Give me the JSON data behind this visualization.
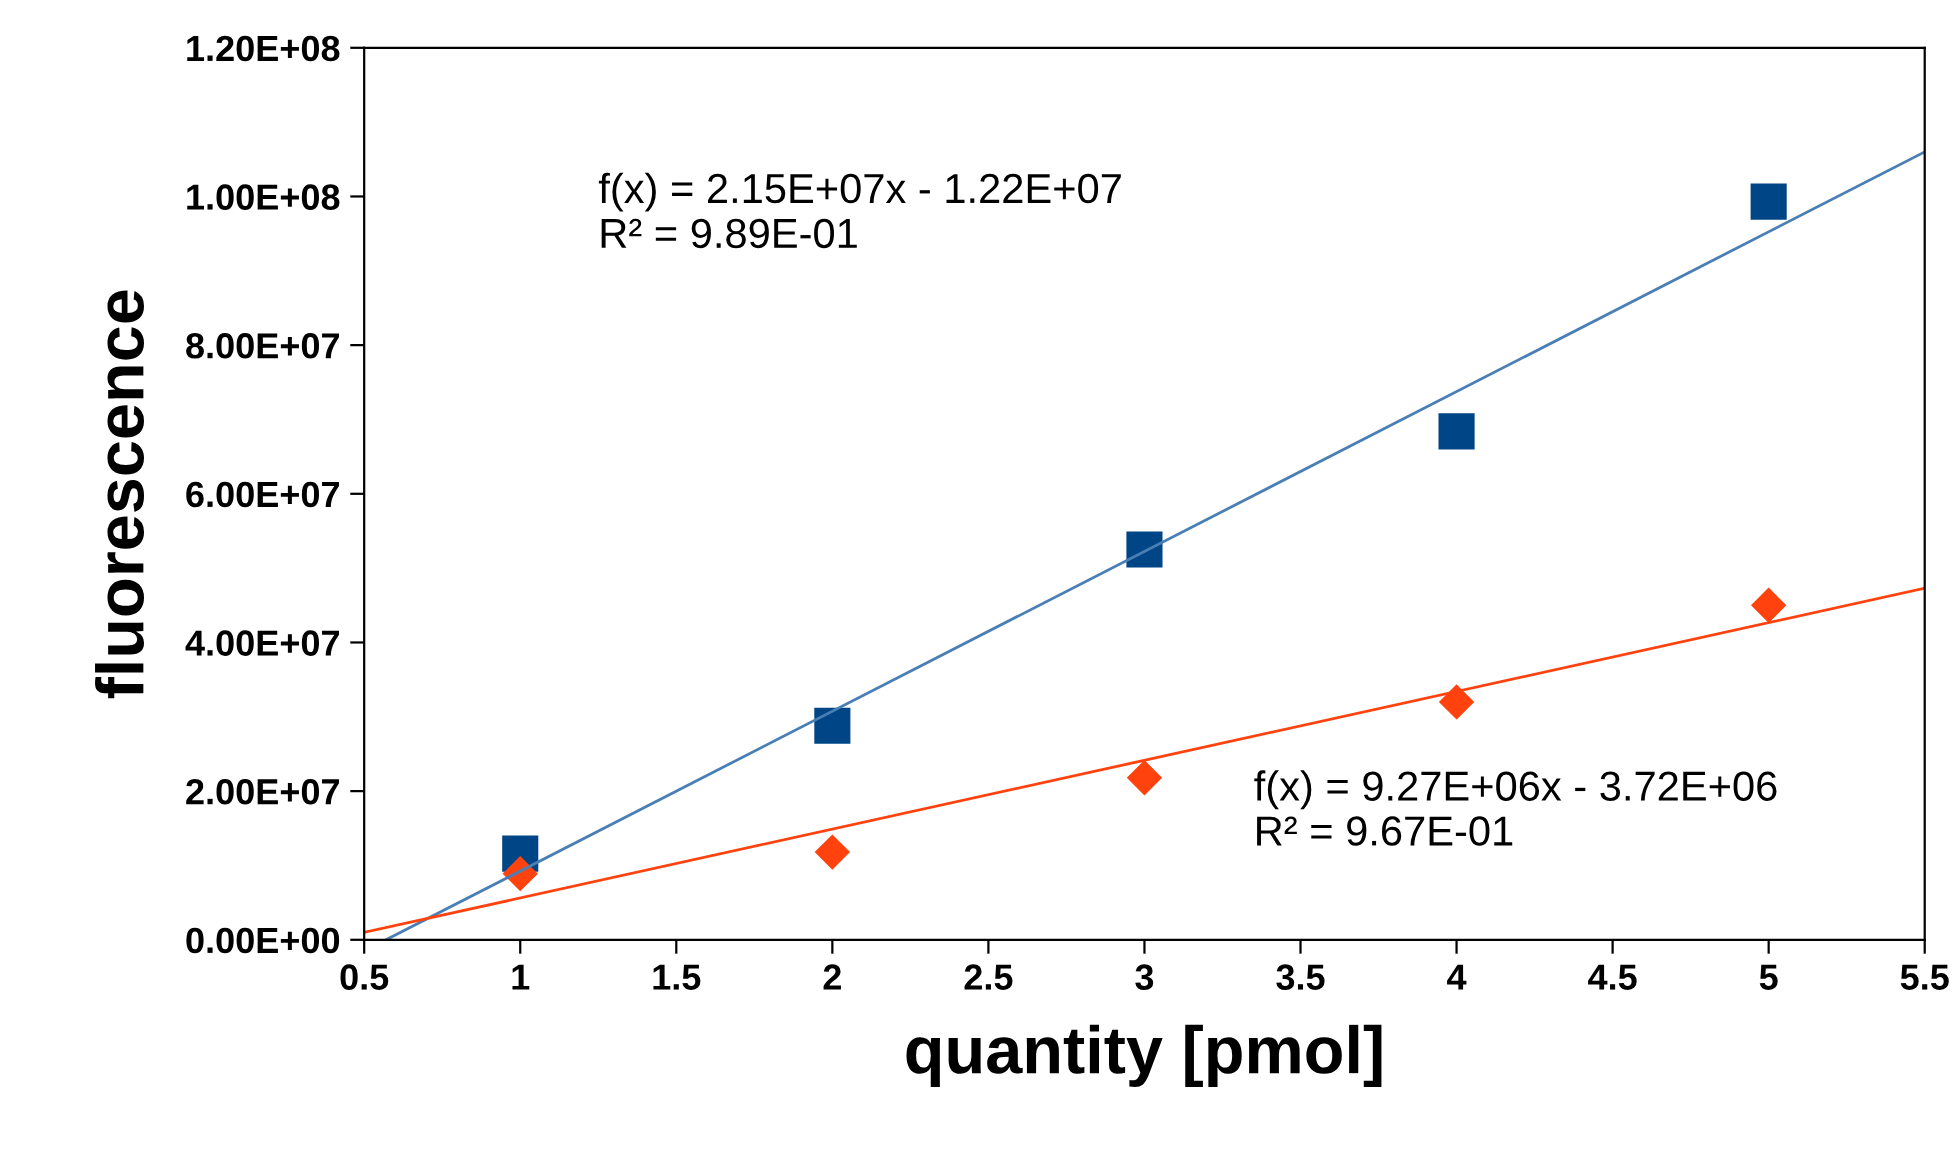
{
  "chart_data": {
    "type": "scatter",
    "xlabel": "quantity [pmol]",
    "ylabel": "fluorescence",
    "x": [
      1,
      2,
      3,
      4,
      5
    ],
    "series": [
      {
        "color": "#004586",
        "marker": "square",
        "values": [
          11600000,
          28800000,
          52500000,
          68400000,
          99300000
        ]
      },
      {
        "color": "#ff420e",
        "marker": "diamond",
        "values": [
          8900000,
          11800000,
          21800000,
          32000000,
          45000000
        ]
      },
      {
        "type": "line",
        "color": "#4a7fb5",
        "marker": "none",
        "x": [
          0.57,
          5.5
        ],
        "values": [
          0,
          106000000
        ]
      },
      {
        "type": "line",
        "color": "#ff420e",
        "marker": "none",
        "x": [
          0.5,
          5.5
        ],
        "values": [
          1000000,
          47300000
        ]
      }
    ],
    "annotations": [
      "f(x) = 2.15E+07x - 1.22E+07\nR² = 9.89E-01",
      "f(x) = 9.27E+06x - 3.72E+06\nR² = 9.67E-01"
    ],
    "xlim": [
      0.5,
      5.5
    ],
    "xticks": [
      0.5,
      1,
      1.5,
      2,
      2.5,
      3,
      3.5,
      4,
      4.5,
      5,
      5.5
    ],
    "ylim": [
      0,
      120000000
    ],
    "yticks": [
      {
        "value": 0,
        "label": "0.00E+00"
      },
      {
        "value": 20000000,
        "label": "2.00E+07"
      },
      {
        "value": 40000000,
        "label": "4.00E+07"
      },
      {
        "value": 60000000,
        "label": "6.00E+07"
      },
      {
        "value": 80000000,
        "label": "8.00E+07"
      },
      {
        "value": 100000000,
        "label": "1.00E+08"
      },
      {
        "value": 120000000,
        "label": "1.20E+08"
      }
    ],
    "grid": false,
    "legend": false
  }
}
